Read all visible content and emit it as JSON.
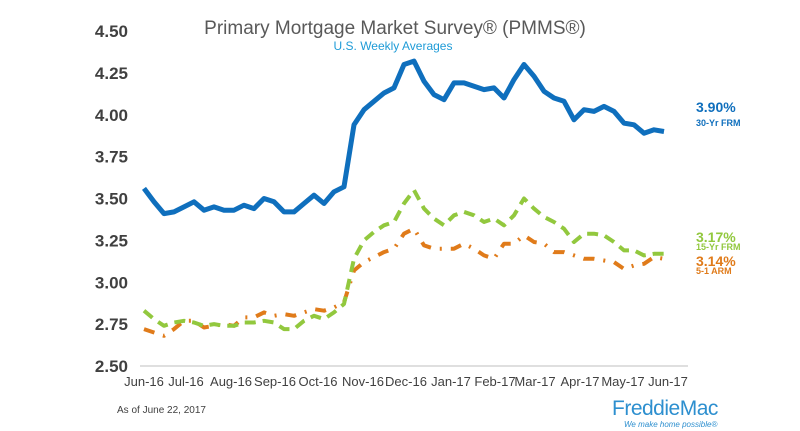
{
  "chart_data": {
    "type": "line",
    "title": "Primary Mortgage Market Survey® (PMMS®)",
    "subtitle": "U.S. Weekly Averages",
    "ylim": [
      2.5,
      4.5
    ],
    "yticks": [
      "4.50",
      "4.25",
      "4.00",
      "3.75",
      "3.50",
      "3.25",
      "3.00",
      "2.75",
      "2.50"
    ],
    "xlim": [
      0,
      54
    ],
    "xticks": [
      {
        "label": "Jun-16",
        "pos": 0
      },
      {
        "label": "Jul-16",
        "pos": 4.2
      },
      {
        "label": "Aug-16",
        "pos": 8.7
      },
      {
        "label": "Sep-16",
        "pos": 13.1
      },
      {
        "label": "Oct-16",
        "pos": 17.4
      },
      {
        "label": "Nov-16",
        "pos": 21.9
      },
      {
        "label": "Dec-16",
        "pos": 26.2
      },
      {
        "label": "Jan-17",
        "pos": 30.7
      },
      {
        "label": "Feb-17",
        "pos": 35.1
      },
      {
        "label": "Mar-17",
        "pos": 39.1
      },
      {
        "label": "Apr-17",
        "pos": 43.6
      },
      {
        "label": "May-17",
        "pos": 47.9
      },
      {
        "label": "Jun-17",
        "pos": 52.4
      }
    ],
    "series": [
      {
        "name": "30-Yr FRM",
        "color": "#0f6fbd",
        "style": "solid",
        "last_label": "3.90%",
        "values": [
          3.56,
          3.48,
          3.41,
          3.42,
          3.45,
          3.48,
          3.43,
          3.45,
          3.43,
          3.43,
          3.46,
          3.44,
          3.5,
          3.48,
          3.42,
          3.42,
          3.47,
          3.52,
          3.47,
          3.54,
          3.57,
          3.94,
          4.03,
          4.08,
          4.13,
          4.16,
          4.3,
          4.32,
          4.2,
          4.12,
          4.09,
          4.19,
          4.19,
          4.17,
          4.15,
          4.16,
          4.1,
          4.21,
          4.3,
          4.23,
          4.14,
          4.1,
          4.08,
          3.97,
          4.03,
          4.02,
          4.05,
          4.02,
          3.95,
          3.94,
          3.89,
          3.91,
          3.9
        ]
      },
      {
        "name": "15-Yr FRM",
        "color": "#92c83e",
        "style": "dashed",
        "last_label": "3.17%",
        "values": [
          2.83,
          2.78,
          2.74,
          2.76,
          2.77,
          2.76,
          2.74,
          2.75,
          2.74,
          2.74,
          2.76,
          2.76,
          2.77,
          2.76,
          2.72,
          2.72,
          2.77,
          2.8,
          2.78,
          2.82,
          2.87,
          3.14,
          3.25,
          3.3,
          3.34,
          3.36,
          3.47,
          3.55,
          3.44,
          3.38,
          3.34,
          3.4,
          3.42,
          3.4,
          3.36,
          3.38,
          3.34,
          3.4,
          3.5,
          3.44,
          3.39,
          3.36,
          3.32,
          3.24,
          3.29,
          3.29,
          3.28,
          3.24,
          3.19,
          3.19,
          3.16,
          3.17,
          3.17
        ]
      },
      {
        "name": "5-1 ARM",
        "color": "#e07b1a",
        "style": "dashdot",
        "last_label": "3.14%",
        "values": [
          2.72,
          2.7,
          2.68,
          2.72,
          2.77,
          2.77,
          2.73,
          2.74,
          2.75,
          2.74,
          2.79,
          2.79,
          2.82,
          2.8,
          2.81,
          2.8,
          2.82,
          2.84,
          2.83,
          2.85,
          2.88,
          3.07,
          3.12,
          3.15,
          3.18,
          3.2,
          3.29,
          3.32,
          3.22,
          3.2,
          3.2,
          3.2,
          3.23,
          3.2,
          3.16,
          3.14,
          3.23,
          3.23,
          3.28,
          3.24,
          3.23,
          3.18,
          3.18,
          3.16,
          3.14,
          3.14,
          3.13,
          3.12,
          3.08,
          3.1,
          3.11,
          3.15,
          3.14
        ]
      }
    ]
  },
  "footer": {
    "as_of": "As of June 22, 2017",
    "logo_text_a": "Freddie",
    "logo_text_b": "Mac",
    "logo_tagline": "We make home possible®"
  }
}
